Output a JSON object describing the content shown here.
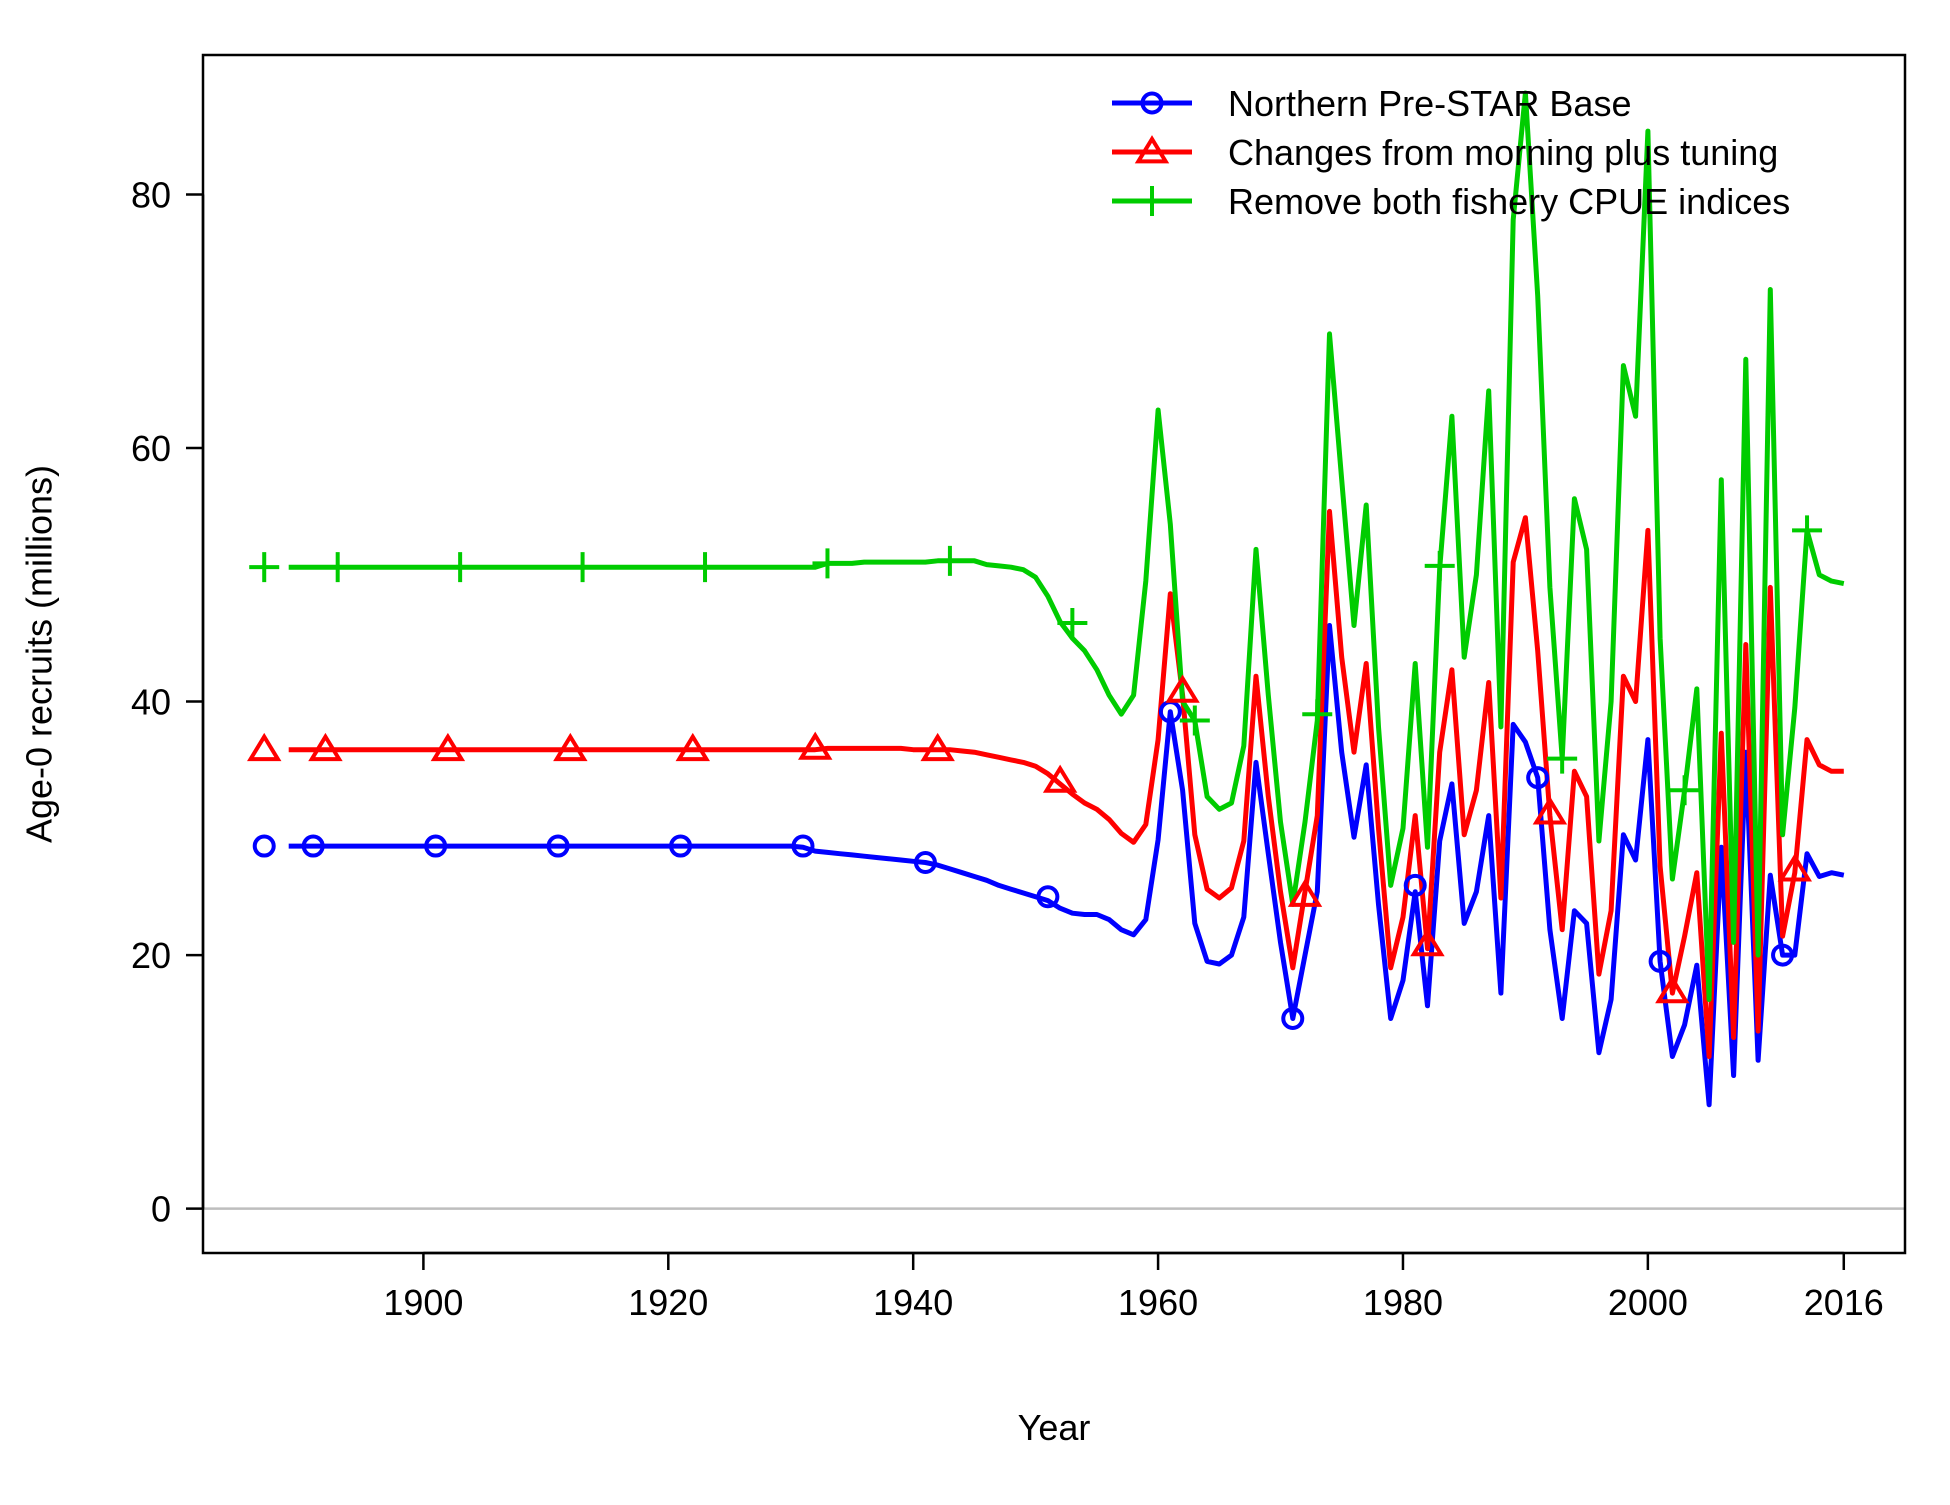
{
  "chart_data": {
    "type": "line",
    "title": "",
    "xlabel": "Year",
    "ylabel": "Age-0 recruits (millions)",
    "xlim": [
      1882,
      2021
    ],
    "ylim": [
      -3.5,
      91
    ],
    "x_ticks": [
      1900,
      1920,
      1940,
      1960,
      1980,
      2000,
      2016
    ],
    "y_ticks": [
      0,
      20,
      40,
      60,
      80
    ],
    "reference_line_y": 0,
    "legend_position": "top-right",
    "x": [
      1889,
      1890,
      1891,
      1892,
      1893,
      1894,
      1895,
      1896,
      1897,
      1898,
      1899,
      1900,
      1901,
      1902,
      1903,
      1904,
      1905,
      1906,
      1907,
      1908,
      1909,
      1910,
      1911,
      1912,
      1913,
      1914,
      1915,
      1916,
      1917,
      1918,
      1919,
      1920,
      1921,
      1922,
      1923,
      1924,
      1925,
      1926,
      1927,
      1928,
      1929,
      1930,
      1931,
      1932,
      1933,
      1934,
      1935,
      1936,
      1937,
      1938,
      1939,
      1940,
      1941,
      1942,
      1943,
      1944,
      1945,
      1946,
      1947,
      1948,
      1949,
      1950,
      1951,
      1952,
      1953,
      1954,
      1955,
      1956,
      1957,
      1958,
      1959,
      1960,
      1961,
      1962,
      1963,
      1964,
      1965,
      1966,
      1967,
      1968,
      1969,
      1970,
      1971,
      1972,
      1973,
      1974,
      1975,
      1976,
      1977,
      1978,
      1979,
      1980,
      1981,
      1982,
      1983,
      1984,
      1985,
      1986,
      1987,
      1988,
      1989,
      1990,
      1991,
      1992,
      1993,
      1994,
      1995,
      1996,
      1997,
      1998,
      1999,
      2000,
      2001,
      2002,
      2003,
      2004,
      2005,
      2006,
      2007,
      2008,
      2009,
      2010,
      2011,
      2012,
      2013,
      2014,
      2015,
      2016
    ],
    "series": [
      {
        "name": "Northern Pre-STAR Base",
        "color": "#0000ff",
        "marker": "circle",
        "virgin_point": {
          "x": 1887,
          "y": 28.6
        },
        "values": [
          28.6,
          28.6,
          28.6,
          28.6,
          28.6,
          28.6,
          28.6,
          28.6,
          28.6,
          28.6,
          28.6,
          28.6,
          28.6,
          28.6,
          28.6,
          28.6,
          28.6,
          28.6,
          28.6,
          28.6,
          28.6,
          28.6,
          28.6,
          28.6,
          28.6,
          28.6,
          28.6,
          28.6,
          28.6,
          28.6,
          28.6,
          28.6,
          28.6,
          28.6,
          28.6,
          28.6,
          28.6,
          28.6,
          28.6,
          28.6,
          28.6,
          28.6,
          28.5,
          28.2,
          28.1,
          28.0,
          27.9,
          27.8,
          27.7,
          27.6,
          27.5,
          27.4,
          27.3,
          27.1,
          26.8,
          26.5,
          26.2,
          25.9,
          25.5,
          25.2,
          24.9,
          24.6,
          24.3,
          23.7,
          23.3,
          23.2,
          23.2,
          22.8,
          22.0,
          21.6,
          22.8,
          29.1,
          39.2,
          33.0,
          22.5,
          19.5,
          19.3,
          20.0,
          23.0,
          35.2,
          28.0,
          21.0,
          15.0,
          20.0,
          25.0,
          46.0,
          36.0,
          29.3,
          35.0,
          24.0,
          15.0,
          18.0,
          25.0,
          16.0,
          29.0,
          33.5,
          22.5,
          25.0,
          31.0,
          17.0,
          38.2,
          36.8,
          34.0,
          22.0,
          15.0,
          23.5,
          22.5,
          12.3,
          16.5,
          29.5,
          27.5,
          37.0,
          19.5,
          12.0,
          14.5,
          19.2,
          8.2,
          28.5,
          10.5,
          36.0,
          11.7,
          26.3,
          20.0,
          20.0,
          28.0,
          26.2,
          26.5,
          26.3
        ]
      },
      {
        "name": "Changes from morning plus tuning",
        "color": "#ff0000",
        "marker": "triangle",
        "virgin_point": {
          "x": 1887,
          "y": 36.2
        },
        "values": [
          36.2,
          36.2,
          36.2,
          36.2,
          36.2,
          36.2,
          36.2,
          36.2,
          36.2,
          36.2,
          36.2,
          36.2,
          36.2,
          36.2,
          36.2,
          36.2,
          36.2,
          36.2,
          36.2,
          36.2,
          36.2,
          36.2,
          36.2,
          36.2,
          36.2,
          36.2,
          36.2,
          36.2,
          36.2,
          36.2,
          36.2,
          36.2,
          36.2,
          36.2,
          36.2,
          36.2,
          36.2,
          36.2,
          36.2,
          36.2,
          36.2,
          36.2,
          36.2,
          36.2,
          36.3,
          36.3,
          36.3,
          36.3,
          36.3,
          36.3,
          36.3,
          36.2,
          36.2,
          36.2,
          36.2,
          36.1,
          36.0,
          35.8,
          35.6,
          35.4,
          35.2,
          34.9,
          34.3,
          33.5,
          32.7,
          32.0,
          31.5,
          30.7,
          29.6,
          28.9,
          30.3,
          37.0,
          48.5,
          40.5,
          29.5,
          25.2,
          24.5,
          25.3,
          29.0,
          42.0,
          32.5,
          25.0,
          19.0,
          25.0,
          31.0,
          55.0,
          43.5,
          36.0,
          43.0,
          30.0,
          19.0,
          23.0,
          31.0,
          20.5,
          36.0,
          42.5,
          29.5,
          33.0,
          41.5,
          24.5,
          51.0,
          54.5,
          44.0,
          31.0,
          22.0,
          34.5,
          32.5,
          18.5,
          23.5,
          42.0,
          40.0,
          53.5,
          27.0,
          17.0,
          21.5,
          26.5,
          12.0,
          37.5,
          13.5,
          44.5,
          14.0,
          49.0,
          21.5,
          26.5,
          37.0,
          35.0,
          34.5,
          34.5
        ]
      },
      {
        "name": "Remove both fishery CPUE indices",
        "color": "#00cc00",
        "marker": "plus",
        "virgin_point": {
          "x": 1887,
          "y": 50.6
        },
        "values": [
          50.6,
          50.6,
          50.6,
          50.6,
          50.6,
          50.6,
          50.6,
          50.6,
          50.6,
          50.6,
          50.6,
          50.6,
          50.6,
          50.6,
          50.6,
          50.6,
          50.6,
          50.6,
          50.6,
          50.6,
          50.6,
          50.6,
          50.6,
          50.6,
          50.6,
          50.6,
          50.6,
          50.6,
          50.6,
          50.6,
          50.6,
          50.6,
          50.6,
          50.6,
          50.6,
          50.6,
          50.6,
          50.6,
          50.6,
          50.6,
          50.6,
          50.6,
          50.6,
          50.6,
          50.9,
          50.9,
          50.9,
          51.0,
          51.0,
          51.0,
          51.0,
          51.0,
          51.0,
          51.1,
          51.1,
          51.1,
          51.1,
          50.8,
          50.7,
          50.6,
          50.4,
          49.8,
          48.3,
          46.3,
          45.0,
          44.0,
          42.5,
          40.5,
          39.0,
          40.5,
          49.5,
          63.0,
          54.0,
          40.0,
          38.5,
          32.5,
          31.5,
          32.0,
          36.5,
          52.0,
          40.5,
          30.5,
          24.0,
          30.5,
          38.5,
          69.0,
          57.5,
          46.0,
          55.5,
          38.0,
          25.5,
          30.0,
          43.0,
          28.5,
          50.5,
          62.5,
          43.5,
          50.0,
          64.5,
          38.0,
          78.0,
          88.0,
          72.0,
          49.0,
          35.5,
          56.0,
          52.0,
          29.0,
          40.0,
          66.5,
          62.5,
          85.0,
          45.0,
          26.0,
          33.0,
          41.0,
          16.5,
          57.5,
          21.0,
          67.0,
          20.0,
          72.5,
          29.5,
          39.5,
          53.5,
          50.0,
          49.5,
          49.3
        ]
      }
    ],
    "markers": {
      "Northern Pre-STAR Base": [
        {
          "x": 1887,
          "y": 28.6
        },
        {
          "x": 1891,
          "y": 28.6
        },
        {
          "x": 1901,
          "y": 28.6
        },
        {
          "x": 1911,
          "y": 28.6
        },
        {
          "x": 1921,
          "y": 28.6
        },
        {
          "x": 1931,
          "y": 28.6
        },
        {
          "x": 1941,
          "y": 27.3
        },
        {
          "x": 1951,
          "y": 24.6
        },
        {
          "x": 1961,
          "y": 39.2
        },
        {
          "x": 1971,
          "y": 15.0
        },
        {
          "x": 1981,
          "y": 25.5
        },
        {
          "x": 1991,
          "y": 34.0
        },
        {
          "x": 2001,
          "y": 19.5
        },
        {
          "x": 2011,
          "y": 20.0
        }
      ],
      "Changes from morning plus tuning": [
        {
          "x": 1887,
          "y": 36.2
        },
        {
          "x": 1892,
          "y": 36.2
        },
        {
          "x": 1902,
          "y": 36.2
        },
        {
          "x": 1912,
          "y": 36.2
        },
        {
          "x": 1922,
          "y": 36.2
        },
        {
          "x": 1932,
          "y": 36.3
        },
        {
          "x": 1942,
          "y": 36.2
        },
        {
          "x": 1952,
          "y": 33.7
        },
        {
          "x": 1962,
          "y": 40.8
        },
        {
          "x": 1972,
          "y": 24.7
        },
        {
          "x": 1982,
          "y": 20.8
        },
        {
          "x": 1992,
          "y": 31.2
        },
        {
          "x": 2002,
          "y": 17.1
        },
        {
          "x": 2012,
          "y": 26.7
        }
      ],
      "Remove both fishery CPUE indices": [
        {
          "x": 1887,
          "y": 50.6
        },
        {
          "x": 1893,
          "y": 50.6
        },
        {
          "x": 1903,
          "y": 50.6
        },
        {
          "x": 1913,
          "y": 50.6
        },
        {
          "x": 1923,
          "y": 50.6
        },
        {
          "x": 1933,
          "y": 50.9
        },
        {
          "x": 1943,
          "y": 51.1
        },
        {
          "x": 1953,
          "y": 46.2
        },
        {
          "x": 1963,
          "y": 38.5
        },
        {
          "x": 1973,
          "y": 39.0
        },
        {
          "x": 1983,
          "y": 50.7
        },
        {
          "x": 1993,
          "y": 35.5
        },
        {
          "x": 2003,
          "y": 33.0
        },
        {
          "x": 2013,
          "y": 53.5
        }
      ]
    }
  }
}
